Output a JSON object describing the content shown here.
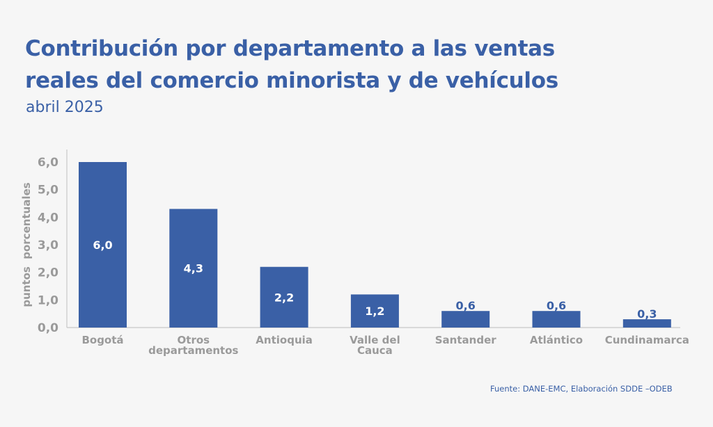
{
  "header": {
    "title_line1": "Contribución por departamento a las ventas",
    "title_line2": "reales del comercio minorista y de vehículos",
    "subtitle": "abril 2025"
  },
  "footer": {
    "source": "Fuente: DANE-EMC, Elaboración SDDE –ODEB"
  },
  "colors": {
    "bar": "#3a60a6",
    "title": "#3a60a6",
    "axis_text": "#9a9a9a",
    "axis_line": "#c8c8c8",
    "background": "#f6f6f6"
  },
  "chart_data": {
    "type": "bar",
    "title": "Contribución por departamento a las ventas reales del comercio minorista y de vehículos",
    "subtitle": "abril 2025",
    "xlabel": "",
    "ylabel": "puntos  porcentuales",
    "categories": [
      [
        "Bogotá"
      ],
      [
        "Otros",
        "departamentos"
      ],
      [
        "Antioquia"
      ],
      [
        "Valle del",
        "Cauca"
      ],
      [
        "Santander"
      ],
      [
        "Atlántico"
      ],
      [
        "Cundinamarca"
      ]
    ],
    "values": [
      6.0,
      4.3,
      2.2,
      1.2,
      0.6,
      0.6,
      0.3
    ],
    "data_labels": [
      "6,0",
      "4,3",
      "2,2",
      "1,2",
      "0,6",
      "0,6",
      "0,3"
    ],
    "ylim": [
      0,
      6
    ],
    "yticks": [
      0,
      1,
      2,
      3,
      4,
      5,
      6
    ],
    "ytick_labels": [
      "0,0",
      "1,0",
      "2,0",
      "3,0",
      "4,0",
      "5,0",
      "6,0"
    ],
    "grid": false,
    "legend": "none",
    "source": "Fuente: DANE-EMC, Elaboración SDDE –ODEB"
  }
}
